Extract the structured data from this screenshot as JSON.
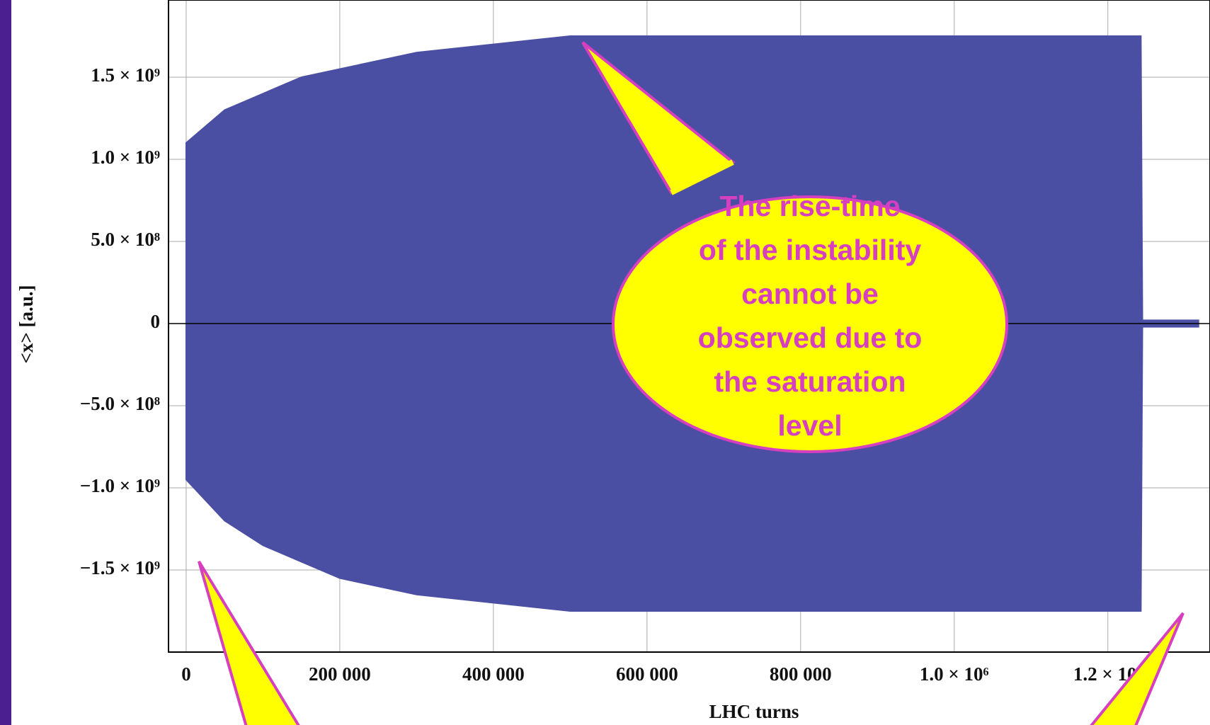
{
  "chart_data": {
    "type": "band",
    "x_label": "LHC turns",
    "y_label": "<x> [a.u.]",
    "x": [
      0,
      50000,
      100000,
      150000,
      200000,
      300000,
      400000,
      500000,
      600000,
      800000,
      1000000,
      1200000,
      1243000,
      1245000,
      1318000
    ],
    "series": [
      {
        "name": "upper",
        "color": "#4b4fa3",
        "values": [
          1100000000,
          1300000000,
          1400000000,
          1500000000,
          1550000000,
          1650000000,
          1700000000,
          1750000000,
          1750000000,
          1750000000,
          1750000000,
          1750000000,
          1750000000,
          20000000,
          20000000
        ]
      },
      {
        "name": "lower",
        "color": "#4b4fa3",
        "values": [
          -950000000,
          -1200000000,
          -1350000000,
          -1450000000,
          -1550000000,
          -1650000000,
          -1700000000,
          -1750000000,
          -1750000000,
          -1750000000,
          -1750000000,
          -1750000000,
          -1750000000,
          -20000000,
          -20000000
        ]
      }
    ],
    "xlim": [
      -23000,
      1333000
    ],
    "ylim": [
      -2000000000,
      1970000000
    ],
    "xticks": [
      0,
      {
        "value": 200000,
        "label": "200 000"
      },
      {
        "value": 400000,
        "label": "400 000"
      },
      {
        "value": 600000,
        "label": "600 000"
      },
      {
        "value": 800000,
        "label": "800 000"
      },
      {
        "value": 1000000,
        "label": "1.0 × 10⁶"
      },
      {
        "value": 1200000,
        "label": "1.2 × 10⁶"
      }
    ],
    "yticks": [
      {
        "value": -1500000000,
        "label": "−1.5 × 10⁹"
      },
      {
        "value": -1000000000,
        "label": "−1.0 × 10⁹"
      },
      {
        "value": -500000000,
        "label": "−5.0 × 10⁸"
      },
      0,
      {
        "value": 500000000,
        "label": "5.0 × 10⁸"
      },
      {
        "value": 1000000000,
        "label": "1.0 × 10⁹"
      },
      {
        "value": 1500000000,
        "label": "1.5 × 10⁹"
      }
    ],
    "grid": true,
    "annotation": [
      "The rise-time",
      "of the instability",
      "cannot be",
      "observed due to",
      "the saturation",
      "level"
    ]
  }
}
